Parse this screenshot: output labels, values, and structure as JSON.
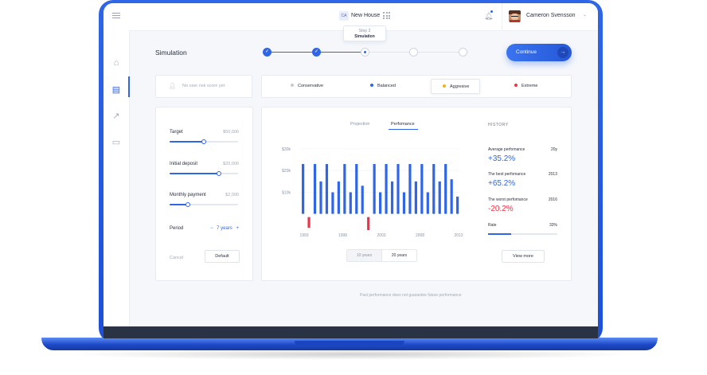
{
  "header": {
    "project_badge": "CA",
    "project_name": "New House",
    "step_tooltip": {
      "line1": "Step 3",
      "line2": "Simulation"
    },
    "user_name": "Cameron Svensson"
  },
  "page": {
    "title": "Simulation"
  },
  "stepper": {
    "total_steps": 5,
    "completed": 2,
    "current": 3
  },
  "continue_label": "Continue",
  "risk": {
    "empty_text": "No user risk score yet",
    "options": [
      {
        "label": "Conservative",
        "color": "#c5cad4",
        "selected": false
      },
      {
        "label": "Balanced",
        "color": "#2f66e8",
        "selected": false
      },
      {
        "label": "Aggresive",
        "color": "#f3b21b",
        "selected": true
      },
      {
        "label": "Extreme",
        "color": "#ef3347",
        "selected": false
      }
    ]
  },
  "params": {
    "target": {
      "label": "Target",
      "value": "$50,000",
      "level": 0.5
    },
    "initial_deposit": {
      "label": "Initial deposit",
      "value": "$20,000",
      "level": 0.72
    },
    "monthly_payment": {
      "label": "Monthly payment",
      "value": "$2,000",
      "level": 0.27
    },
    "period": {
      "label": "Period",
      "minus": "−",
      "value": "7 years",
      "plus": "+"
    },
    "cancel_label": "Cancel",
    "default_label": "Default"
  },
  "tabs": [
    {
      "label": "Projection",
      "active": false
    },
    {
      "label": "Perfomance",
      "active": true
    }
  ],
  "range_toggle": [
    {
      "label": "10 years",
      "selected": false
    },
    {
      "label": "20 years",
      "selected": true
    }
  ],
  "chart_data": {
    "type": "bar",
    "y_ticks": [
      {
        "label": "$30k",
        "value": 30
      },
      {
        "label": "$20k",
        "value": 20
      },
      {
        "label": "$10k",
        "value": 10
      }
    ],
    "x_ticks": [
      "1993",
      "1998",
      "2003",
      "2008",
      "2013"
    ],
    "ylim": [
      -6,
      30
    ],
    "grid": true,
    "colors": {
      "positive": "#2f66e8",
      "negative": "#ef3347"
    },
    "values": [
      23,
      -5,
      23,
      15,
      23,
      10,
      15,
      23,
      10,
      23,
      13,
      -6,
      23,
      10,
      23,
      15,
      23,
      10,
      23,
      15,
      23,
      10,
      23,
      15,
      23,
      16,
      8
    ]
  },
  "history": {
    "title": "HISTORY",
    "items": [
      {
        "label": "Average perfomance",
        "year": "20y",
        "value": "+35.2%",
        "color": "#2f66e8"
      },
      {
        "label": "The best perfomance",
        "year": "2013",
        "value": "+65.2%",
        "color": "#2f66e8"
      },
      {
        "label": "The worst perfomance",
        "year": "2016",
        "value": "-20.2%",
        "color": "#ef3347"
      }
    ],
    "rate": {
      "label": "Rate",
      "value": "33%",
      "level": 0.33
    },
    "view_more": "View more"
  },
  "disclaimer": "Past performance does not guarantee future performance"
}
